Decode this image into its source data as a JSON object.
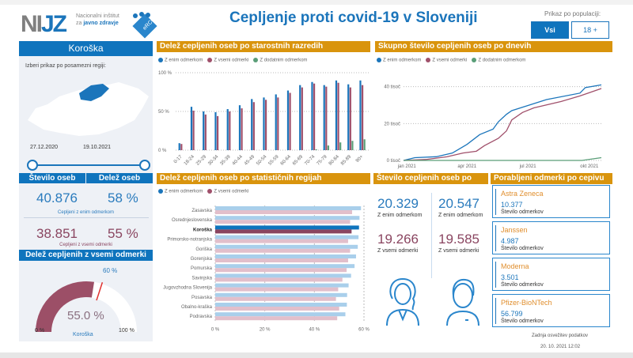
{
  "header": {
    "logo_text": "NIJZ",
    "logo_sub_line1": "Nacionalni inštitut",
    "logo_sub_line2_prefix": "za",
    "logo_sub_line2": "javno zdravje",
    "erco_logo_text": "eRCO",
    "title": "Cepljenje proti covid-19 v Sloveniji",
    "population_label": "Prikaz po populaciji:",
    "btn_all": "Vsi",
    "btn_adult": "18 +"
  },
  "left": {
    "region": "Koroška",
    "select_label": "Izberi prikaz po posamezni regiji:",
    "date_from": "27.12.2020",
    "date_to": "19.10.2021",
    "col1": "Število oseb",
    "col2": "Delež oseb",
    "one_count": "40.876",
    "one_pct": "58 %",
    "one_caption": "Cepljeni z enim odmerkom",
    "all_count": "38.851",
    "all_pct": "55 %",
    "all_caption": "Cepljeni z vsemi odmerki",
    "gauge_title": "Delež cepljenih z vsemi odmerki",
    "gauge_value": 55.0,
    "gauge_value_label": "55.0 %",
    "gauge_target": 60,
    "gauge_target_label": "60 %",
    "gauge_min_label": "0 %",
    "gauge_max_label": "100 %",
    "gauge_caption": "Koroška"
  },
  "colors": {
    "one": "#1b75bb",
    "all": "#a0506b",
    "extra": "#5a9e78",
    "gold": "#d9940d"
  },
  "legend": {
    "one": "Z enim odmerkom",
    "all": "Z vsemi odmerki",
    "extra": "Z dodatnim odmerkom"
  },
  "chart_data": [
    {
      "type": "bar",
      "title": "Delež cepljenih oseb po starostnih razredih",
      "ylim": [
        0,
        100
      ],
      "yticks": [
        "0 %",
        "50 %",
        "100 %"
      ],
      "ytick_values": [
        0,
        50,
        100
      ],
      "categories": [
        "0-17",
        "18-24",
        "25-29",
        "30-34",
        "35-39",
        "40-44",
        "45-49",
        "50-54",
        "55-59",
        "60-64",
        "65-69",
        "70-74",
        "75-79",
        "80-84",
        "85-89",
        "90+"
      ],
      "series": [
        {
          "name": "Z enim odmerkom",
          "values": [
            9,
            56,
            50,
            49,
            53,
            58,
            66,
            68,
            72,
            77,
            84,
            88,
            84,
            90,
            85,
            90
          ]
        },
        {
          "name": "Z vsemi odmerki",
          "values": [
            8,
            51,
            46,
            44,
            50,
            54,
            62,
            65,
            68,
            74,
            81,
            86,
            82,
            87,
            81,
            84
          ]
        },
        {
          "name": "Z dodatnim odmerkom",
          "values": [
            0,
            0,
            0,
            0,
            0,
            0,
            0,
            0,
            0,
            0,
            0,
            1,
            6,
            10,
            12,
            14
          ]
        }
      ]
    },
    {
      "type": "line",
      "title": "Skupno število cepljenih oseb po dnevih",
      "ylim": [
        0,
        45
      ],
      "yticks": [
        "0 tisoč",
        "20 tisoč",
        "40 tisoč"
      ],
      "ytick_values": [
        0,
        20,
        40
      ],
      "xlim": [
        "2020-12-27",
        "2021-10-19"
      ],
      "xticks": [
        {
          "label": "jan 2021",
          "date": "2021-01-01"
        },
        {
          "label": "apr 2021",
          "date": "2021-04-01"
        },
        {
          "label": "jul 2021",
          "date": "2021-07-01"
        },
        {
          "label": "okt 2021",
          "date": "2021-10-01"
        }
      ],
      "series": [
        {
          "name": "Z enim odmerkom",
          "points": [
            [
              "2020-12-27",
              0
            ],
            [
              "2021-01-13",
              1.5
            ],
            [
              "2021-02-14",
              2
            ],
            [
              "2021-03-10",
              4
            ],
            [
              "2021-04-01",
              8.7
            ],
            [
              "2021-04-20",
              14
            ],
            [
              "2021-05-10",
              17
            ],
            [
              "2021-05-18",
              21
            ],
            [
              "2021-05-30",
              25
            ],
            [
              "2021-06-07",
              27
            ],
            [
              "2021-07-03",
              30
            ],
            [
              "2021-07-29",
              33
            ],
            [
              "2021-09-17",
              36.5
            ],
            [
              "2021-09-25",
              39.5
            ],
            [
              "2021-10-19",
              41
            ]
          ]
        },
        {
          "name": "Z vsemi odmerki",
          "points": [
            [
              "2020-12-27",
              0
            ],
            [
              "2021-01-29",
              0.5
            ],
            [
              "2021-03-02",
              2
            ],
            [
              "2021-03-26",
              4
            ],
            [
              "2021-04-15",
              5
            ],
            [
              "2021-04-27",
              8
            ],
            [
              "2021-05-18",
              12
            ],
            [
              "2021-05-30",
              16
            ],
            [
              "2021-06-07",
              22
            ],
            [
              "2021-06-23",
              26
            ],
            [
              "2021-07-10",
              28.5
            ],
            [
              "2021-08-20",
              32
            ],
            [
              "2021-09-17",
              35
            ],
            [
              "2021-09-29",
              36.5
            ],
            [
              "2021-10-19",
              39
            ]
          ]
        },
        {
          "name": "Z dodatnim odmerkom",
          "points": [
            [
              "2020-12-27",
              0
            ],
            [
              "2021-09-20",
              0
            ],
            [
              "2021-10-19",
              1.5
            ]
          ]
        }
      ]
    },
    {
      "type": "bar",
      "orientation": "horizontal",
      "title": "Delež cepljenih oseb po statističnih regijah",
      "xlim": [
        0,
        60
      ],
      "xticks": [
        "0 %",
        "20 %",
        "40 %",
        "60 %"
      ],
      "xtick_values": [
        0,
        20,
        40,
        60
      ],
      "highlight": "Koroška",
      "categories": [
        "Zasavska",
        "Osrednjeslovenska",
        "Koroška",
        "Primorsko-notranjska",
        "Goriška",
        "Gorenjska",
        "Pomurska",
        "Savinjska",
        "Jugovzhodna Slovenija",
        "Posavska",
        "Obalno-kraška",
        "Podravska"
      ],
      "series": [
        {
          "name": "Z enim odmerkom",
          "values": [
            58.8,
            58.2,
            58,
            57.8,
            57.5,
            56.8,
            56.2,
            54.8,
            53.8,
            53.2,
            53.1,
            52.5
          ]
        },
        {
          "name": "Z vsemi odmerki",
          "values": [
            55.2,
            54.4,
            55,
            53.6,
            54.4,
            53.6,
            53,
            51.3,
            49.6,
            48.7,
            50,
            49.2
          ]
        }
      ]
    }
  ],
  "gender": {
    "title": "Število cepljenih oseb po spolu",
    "female_one": "20.329",
    "female_one_label": "Z enim odmerkom",
    "female_all": "19.266",
    "female_all_label": "Z vsemi odmerki",
    "male_one": "20.547",
    "male_one_label": "Z enim odmerkom",
    "male_all": "19.585",
    "male_all_label": "Z vsemi odmerki"
  },
  "vaccines": {
    "title": "Porabljeni odmerki po cepivu",
    "items": [
      {
        "name": "Astra Zeneca",
        "value": "10.377",
        "label": "Število odmerkov"
      },
      {
        "name": "Janssen",
        "value": "4.987",
        "label": "Število odmerkov"
      },
      {
        "name": "Moderna",
        "value": "3.501",
        "label": "Število odmerkov"
      },
      {
        "name": "Pfizer-BioNTech",
        "value": "56.799",
        "label": "Število odmerkov"
      }
    ]
  },
  "footer": {
    "label": "Zadnja osvežitev podatkov",
    "timestamp": "20. 10. 2021 12:02"
  }
}
